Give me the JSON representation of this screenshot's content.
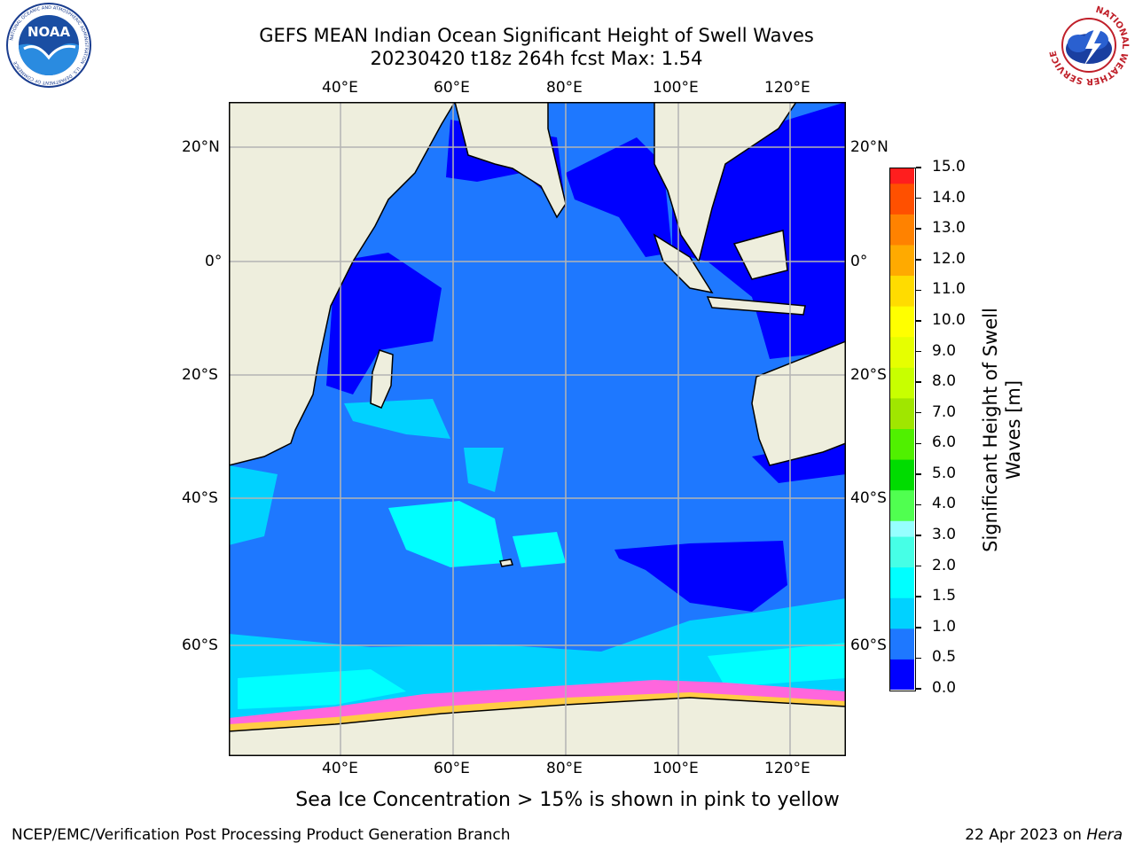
{
  "header": {
    "title_line1": "GEFS MEAN Indian Ocean Significant Height of Swell Waves",
    "title_line2": "20230420 t18z 264h fcst   Max: 1.54"
  },
  "logos": {
    "noaa_text": "NOAA",
    "noaa_ring": "NATIONAL OCEANIC AND ATMOSPHERIC ADMINISTRATION · U.S. DEPARTMENT OF COMMERCE",
    "nws_ring": "NATIONAL WEATHER SERVICE"
  },
  "map": {
    "lon_labels": [
      "40°E",
      "60°E",
      "80°E",
      "100°E",
      "120°E"
    ],
    "lat_labels_left": [
      "20°N",
      "0°",
      "20°S",
      "40°S",
      "60°S"
    ],
    "lat_labels_right": [
      "20°N",
      "0°",
      "20°S",
      "40°S",
      "60°S"
    ],
    "extent": {
      "lon": [
        20,
        130
      ],
      "lat": [
        -74,
        28
      ]
    },
    "colors": {
      "land": "#eeeedd",
      "ocean_main": "#1e78ff",
      "grid": "#b4b4b4"
    }
  },
  "colorbar": {
    "title": "Significant Height of Swell Waves [m]",
    "ticks": [
      "0.0",
      "0.5",
      "1.0",
      "1.5",
      "2.0",
      "3.0",
      "4.0",
      "5.0",
      "6.0",
      "7.0",
      "8.0",
      "9.0",
      "10.0",
      "11.0",
      "12.0",
      "13.0",
      "14.0",
      "15.0"
    ],
    "colors": [
      "#0000ff",
      "#1e78ff",
      "#00d2ff",
      "#00ffff",
      "#46ffe6",
      "#96ffff",
      "#50ff50",
      "#00dc00",
      "#50f000",
      "#a0e600",
      "#c8ff00",
      "#e6ff00",
      "#ffff00",
      "#ffdc00",
      "#ffaa00",
      "#ff8200",
      "#ff5000",
      "#ff1e1e",
      "#ff0000"
    ]
  },
  "footer": {
    "caption": "Sea Ice Concentration > 15% is shown in pink to yellow",
    "left": "NCEP/EMC/Verification Post Processing Product Generation Branch",
    "right_date": "22 Apr 2023 on ",
    "right_host": "Hera"
  }
}
